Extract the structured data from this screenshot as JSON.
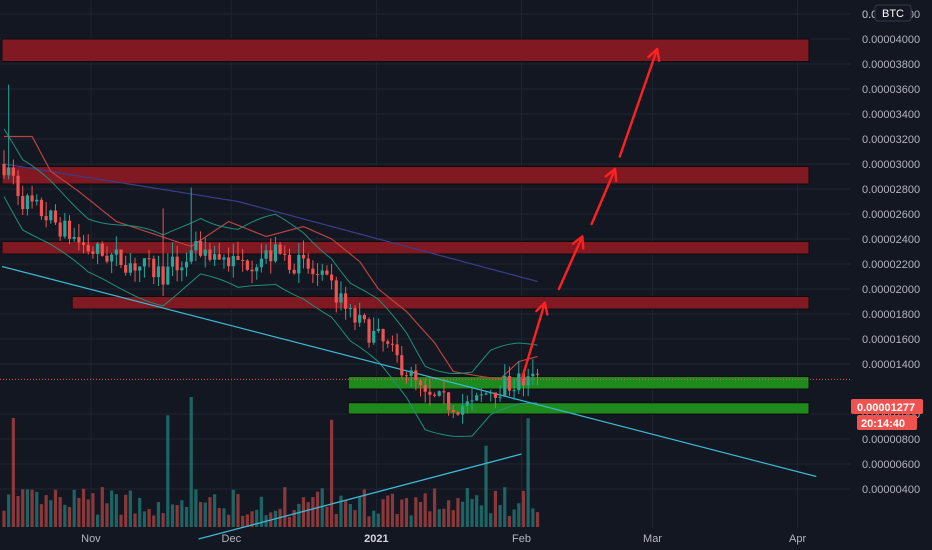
{
  "colors": {
    "background": "#131722",
    "grid": "#1f2433",
    "up": "#26a69a",
    "down": "#ef5350",
    "zone_red": "#801922",
    "zone_green": "#1e8a1e",
    "trendline": "#3bb8d2",
    "arrow": "#ff2020",
    "ma_red": "#b8443f",
    "ma_blue": "#3a3d8c",
    "band": "#1f8f7a"
  },
  "axis": {
    "unit_label": "BTC",
    "top_label": "0.0",
    "x_labels": [
      {
        "text": "Nov",
        "bold": false
      },
      {
        "text": "Dec",
        "bold": false
      },
      {
        "text": "2021",
        "bold": true
      },
      {
        "text": "Feb",
        "bold": false
      },
      {
        "text": "Mar",
        "bold": false
      },
      {
        "text": "Apr",
        "bold": false
      }
    ]
  },
  "price_badge": {
    "price": "0.00001277",
    "countdown": "20:14:40"
  },
  "chart_data": {
    "type": "candlestick",
    "symbol_unit": "BTC",
    "y_ticks": [
      "0.00004200",
      "0.00004000",
      "0.00003800",
      "0.00003600",
      "0.00003400",
      "0.00003200",
      "0.00003000",
      "0.00002800",
      "0.00002600",
      "0.00002400",
      "0.00002200",
      "0.00002000",
      "0.00001800",
      "0.00001600",
      "0.00001400",
      "0.00001000",
      "0.00000800",
      "0.00000600",
      "0.00000400"
    ],
    "y_range": [
      3.6e-06,
      4.4e-05
    ],
    "current_price": 1.277e-05,
    "zones": [
      {
        "kind": "resistance",
        "from": 3.82e-05,
        "to": 4e-05,
        "start": "2020-10-13"
      },
      {
        "kind": "resistance",
        "from": 2.84e-05,
        "to": 2.98e-05,
        "start": "2020-10-13"
      },
      {
        "kind": "resistance",
        "from": 2.28e-05,
        "to": 2.38e-05,
        "start": "2020-10-13"
      },
      {
        "kind": "resistance",
        "from": 1.84e-05,
        "to": 1.94e-05,
        "start": "2020-10-28"
      },
      {
        "kind": "support",
        "from": 1.2e-05,
        "to": 1.3e-05,
        "start": "2020-12-26"
      },
      {
        "kind": "support",
        "from": 1e-05,
        "to": 1.09e-05,
        "start": "2020-12-26"
      }
    ],
    "projection_arrows": [
      {
        "from": [
          "2021-02-01",
          1.27e-05
        ],
        "to": [
          "2021-02-06",
          1.89e-05
        ]
      },
      {
        "from": [
          "2021-02-09",
          2e-05
        ],
        "to": [
          "2021-02-14",
          2.42e-05
        ]
      },
      {
        "from": [
          "2021-02-16",
          2.52e-05
        ],
        "to": [
          "2021-02-21",
          2.96e-05
        ]
      },
      {
        "from": [
          "2021-02-22",
          3.06e-05
        ],
        "to": [
          "2021-03-02",
          3.92e-05
        ]
      }
    ],
    "trendlines": [
      {
        "from": [
          "2020-10-13",
          2.18e-05
        ],
        "to": [
          "2021-04-05",
          5e-06
        ]
      },
      {
        "from": [
          "2020-11-24",
          0.0
        ],
        "to": [
          "2021-02-01",
          6.8e-06
        ]
      }
    ]
  }
}
